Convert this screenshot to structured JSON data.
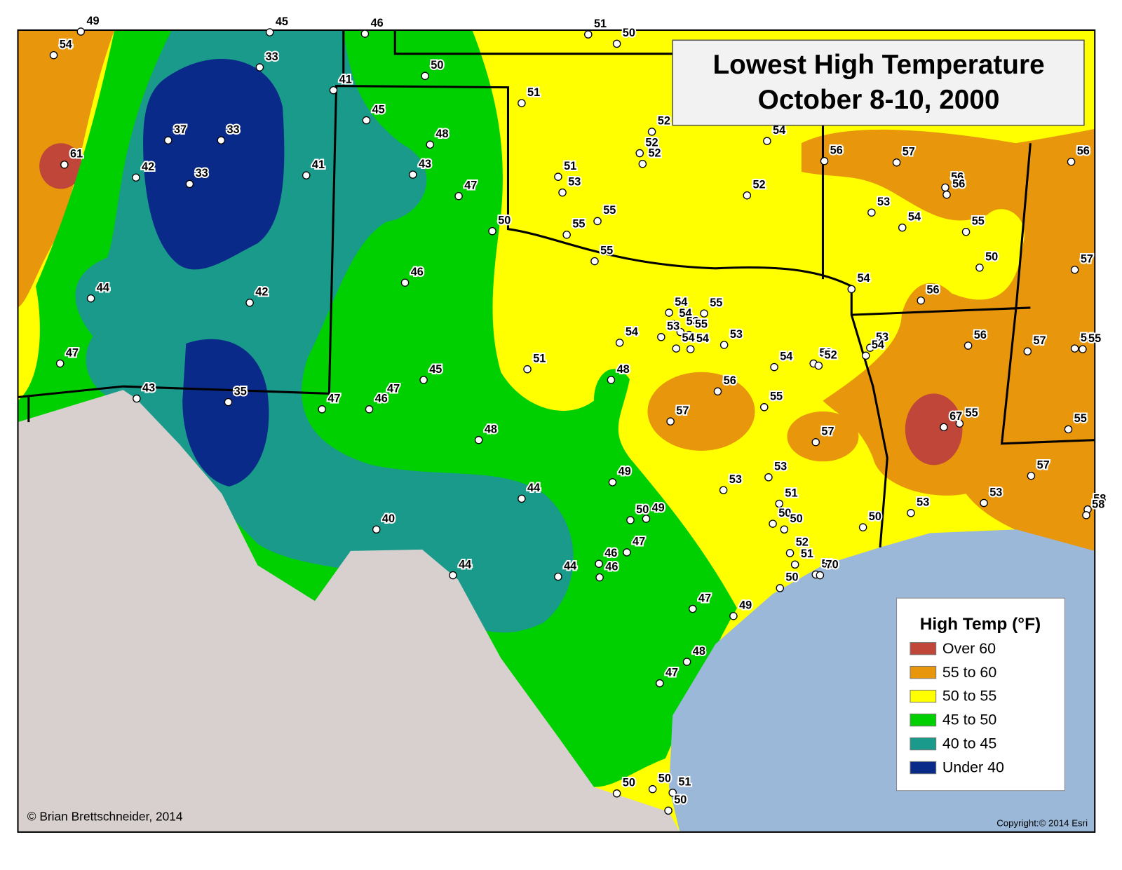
{
  "header": {
    "title_line1": "Lowest High Temperature",
    "title_line2": "October 8-10, 2000"
  },
  "legend": {
    "title": "High Temp (°F)",
    "items": [
      "Over 60",
      "55 to 60",
      "50 to 55",
      "45 to 50",
      "40 to 45",
      "Under 40"
    ]
  },
  "stations": [
    54,
    49,
    45,
    46,
    51,
    50,
    33,
    41,
    50,
    51,
    45,
    48,
    37,
    33,
    61,
    42,
    33,
    41,
    43,
    47,
    50,
    51,
    53,
    55,
    55,
    55,
    44,
    42,
    46,
    47,
    43,
    35,
    47,
    47,
    46,
    45,
    51,
    48,
    48,
    44,
    40,
    44,
    44,
    46,
    46,
    47,
    49,
    50,
    49,
    47,
    49,
    48,
    47,
    50,
    50,
    51,
    50,
    52,
    52,
    52,
    54,
    52,
    54,
    55,
    54,
    53,
    55,
    53,
    54,
    54,
    53,
    54,
    54,
    53,
    52,
    56,
    57,
    55,
    57,
    53,
    53,
    51,
    50,
    50,
    52,
    51,
    53,
    70,
    50,
    50,
    53,
    53,
    57,
    58,
    58,
    55,
    55,
    67,
    57,
    54,
    55,
    56,
    53,
    54,
    54,
    56,
    50,
    57,
    55,
    54,
    53,
    56,
    56,
    57,
    56,
    56
  ],
  "credits": {
    "author": "© Brian Brettschneider, 2014",
    "basemap": "Copyright:© 2014 Esri"
  }
}
